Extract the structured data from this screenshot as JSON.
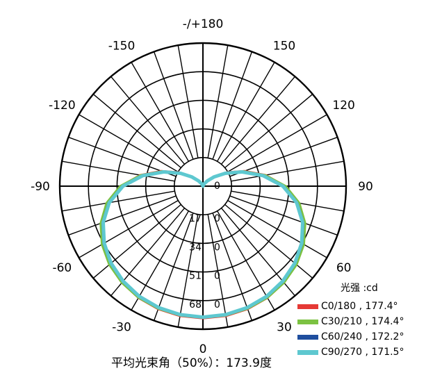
{
  "chart_data": {
    "type": "polar-line",
    "angle_labels": [
      {
        "angle": 180,
        "text": "-/+180"
      },
      {
        "angle": 150,
        "text": "150"
      },
      {
        "angle": -150,
        "text": "-150"
      },
      {
        "angle": 120,
        "text": "120"
      },
      {
        "angle": -120,
        "text": "-120"
      },
      {
        "angle": 90,
        "text": "90"
      },
      {
        "angle": -90,
        "text": "-90"
      },
      {
        "angle": 60,
        "text": "60"
      },
      {
        "angle": -60,
        "text": "-60"
      },
      {
        "angle": 30,
        "text": "30"
      },
      {
        "angle": -30,
        "text": "-30"
      },
      {
        "angle": 0,
        "text": "0"
      }
    ],
    "radial_axis": {
      "min": 0,
      "max": 85,
      "ticks": [
        0,
        17,
        34,
        51,
        68
      ],
      "tick_labels": [
        "0",
        "17",
        "34",
        "51",
        "68"
      ],
      "side_zero_label": "0"
    },
    "grid": {
      "angle_step_deg": 10,
      "rings": 5
    },
    "legend": {
      "title": "光强  :cd",
      "entries": [
        {
          "label": "C0/180 , 177.4°",
          "color": "#e53935"
        },
        {
          "label": "C30/210 , 174.4°",
          "color": "#7cc242"
        },
        {
          "label": "C60/240 , 172.2°",
          "color": "#1f4e9e"
        },
        {
          "label": "C90/270 , 171.5°",
          "color": "#5ec8d0"
        }
      ]
    },
    "series": [
      {
        "color": "#e53935",
        "angles": [
          0,
          10,
          20,
          30,
          40,
          50,
          60,
          70,
          80,
          90,
          100,
          110,
          120,
          130,
          140,
          150,
          160,
          170,
          180
        ],
        "values": [
          78.5,
          78.3,
          77.7,
          76.6,
          74.8,
          72.4,
          69.0,
          64.3,
          57.8,
          48.9,
          37.8,
          26.3,
          16.5,
          9.3,
          4.7,
          2.1,
          0.8,
          0.2,
          0
        ]
      },
      {
        "color": "#7cc242",
        "angles": [
          0,
          10,
          20,
          30,
          40,
          50,
          60,
          70,
          80,
          90,
          100,
          110,
          120,
          130,
          140,
          150,
          160,
          170,
          180
        ],
        "values": [
          78.2,
          78.0,
          77.5,
          76.5,
          74.9,
          72.6,
          69.3,
          64.7,
          58.2,
          49.2,
          37.6,
          25.8,
          16.0,
          8.9,
          4.4,
          1.9,
          0.7,
          0.2,
          0
        ]
      },
      {
        "color": "#1f4e9e",
        "angles": [
          0,
          10,
          20,
          30,
          40,
          50,
          60,
          70,
          80,
          90,
          100,
          110,
          120,
          130,
          140,
          150,
          160,
          170,
          180
        ],
        "values": [
          78.0,
          77.8,
          77.1,
          75.9,
          74.1,
          71.6,
          68.2,
          63.5,
          57.0,
          48.0,
          36.6,
          25.0,
          15.5,
          8.6,
          4.2,
          1.8,
          0.7,
          0.2,
          0
        ]
      },
      {
        "color": "#5ec8d0",
        "angles": [
          0,
          10,
          20,
          30,
          40,
          50,
          60,
          70,
          80,
          90,
          100,
          110,
          120,
          130,
          140,
          150,
          160,
          170,
          180
        ],
        "values": [
          77.8,
          77.5,
          76.8,
          75.6,
          73.7,
          71.2,
          67.7,
          63.0,
          56.5,
          47.5,
          36.2,
          24.7,
          15.3,
          8.5,
          4.1,
          1.8,
          0.7,
          0.2,
          0
        ]
      }
    ]
  },
  "footer": {
    "text": "平均光束角（50%）：173.9度"
  }
}
